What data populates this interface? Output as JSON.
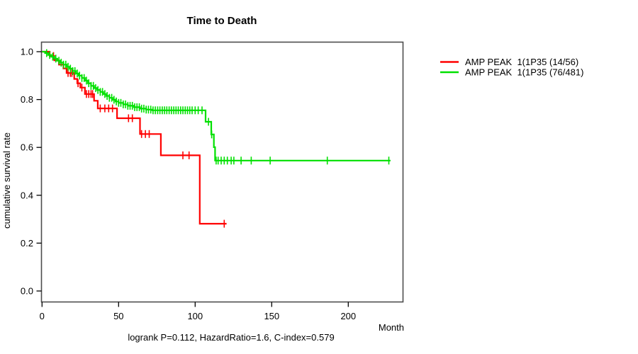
{
  "figure": {
    "background": "#ffffff"
  },
  "chart_data": {
    "type": "line",
    "variant": "kaplan_meier_step",
    "title": "Time to Death",
    "xlabel": "Month",
    "ylabel": "cumulative survival rate",
    "caption": "logrank P=0.112, HazardRatio=1.6, C-index=0.579",
    "xlim": [
      0,
      236
    ],
    "ylim": [
      0,
      1.04
    ],
    "grid": false,
    "legend_position": "right-outside",
    "xticks": [
      {
        "v": 0,
        "label": "0"
      },
      {
        "v": 50,
        "label": "50"
      },
      {
        "v": 100,
        "label": "100"
      },
      {
        "v": 150,
        "label": "150"
      },
      {
        "v": 200,
        "label": "200"
      }
    ],
    "yticks": [
      {
        "v": 0.0,
        "label": "0.0"
      },
      {
        "v": 0.2,
        "label": "0.2"
      },
      {
        "v": 0.4,
        "label": "0.4"
      },
      {
        "v": 0.6,
        "label": "0.6"
      },
      {
        "v": 0.8,
        "label": "0.8"
      },
      {
        "v": 1.0,
        "label": "1.0"
      }
    ],
    "series": [
      {
        "name": "AMP PEAK  1(1P35 (14/56)",
        "events": 14,
        "n": 56,
        "color": "#ff0000",
        "end_time": 120.5,
        "steps": [
          [
            0,
            1.0
          ],
          [
            5,
            0.982
          ],
          [
            8,
            0.964
          ],
          [
            11,
            0.946
          ],
          [
            14,
            0.93
          ],
          [
            16,
            0.911
          ],
          [
            21,
            0.886
          ],
          [
            23,
            0.868
          ],
          [
            25,
            0.85
          ],
          [
            28,
            0.823
          ],
          [
            34,
            0.795
          ],
          [
            36.4,
            0.763
          ],
          [
            49,
            0.722
          ],
          [
            64,
            0.656
          ],
          [
            77.6,
            0.567
          ],
          [
            103,
            0.281
          ]
        ],
        "censor_marks": [
          7.5,
          17,
          18.5,
          19.5,
          23.5,
          26,
          29,
          30.5,
          32,
          33,
          38,
          41,
          43.5,
          46,
          56.5,
          59,
          65,
          67.5,
          70,
          92,
          96,
          119
        ]
      },
      {
        "name": "AMP PEAK  1(1P35 (76/481)",
        "events": 76,
        "n": 481,
        "color": "#00e000",
        "end_time": 227.6,
        "steps": [
          [
            0,
            1.0
          ],
          [
            2,
            0.994
          ],
          [
            4,
            0.986
          ],
          [
            6,
            0.979
          ],
          [
            8,
            0.971
          ],
          [
            10,
            0.962
          ],
          [
            12,
            0.954
          ],
          [
            14,
            0.946
          ],
          [
            16,
            0.937
          ],
          [
            18,
            0.929
          ],
          [
            20,
            0.919
          ],
          [
            22,
            0.909
          ],
          [
            24,
            0.9
          ],
          [
            26,
            0.89
          ],
          [
            28,
            0.879
          ],
          [
            30,
            0.868
          ],
          [
            32,
            0.857
          ],
          [
            34,
            0.848
          ],
          [
            36,
            0.84
          ],
          [
            38,
            0.832
          ],
          [
            40,
            0.823
          ],
          [
            42,
            0.815
          ],
          [
            44,
            0.807
          ],
          [
            46,
            0.799
          ],
          [
            48,
            0.792
          ],
          [
            50,
            0.786
          ],
          [
            53,
            0.78
          ],
          [
            56,
            0.774
          ],
          [
            60,
            0.768
          ],
          [
            64,
            0.762
          ],
          [
            68,
            0.758
          ],
          [
            72,
            0.755
          ],
          [
            106.8,
            0.707
          ],
          [
            110.5,
            0.654
          ],
          [
            112.2,
            0.601
          ],
          [
            113,
            0.545
          ]
        ],
        "censor_marks": [
          3,
          5,
          7,
          9,
          11,
          12.5,
          14,
          15.5,
          17,
          18.5,
          20,
          21.5,
          23,
          24.5,
          26,
          27.5,
          29,
          30.5,
          32,
          33.5,
          35,
          36.5,
          38,
          39.5,
          41,
          42.5,
          44,
          45.5,
          47,
          48.5,
          50,
          51.5,
          53,
          54.5,
          56,
          57.5,
          59,
          60.5,
          62,
          63.5,
          65,
          66.5,
          68,
          69.5,
          71,
          72.5,
          74,
          75.5,
          77,
          78.5,
          80,
          81.5,
          83,
          84.5,
          86,
          87.5,
          89,
          90.5,
          92,
          93.5,
          95,
          96.5,
          98,
          100,
          102,
          104.5,
          108.7,
          110.8,
          113.7,
          115,
          117,
          119,
          121,
          123.5,
          125.3,
          130,
          136.6,
          149,
          186.3,
          226.5
        ]
      }
    ]
  }
}
